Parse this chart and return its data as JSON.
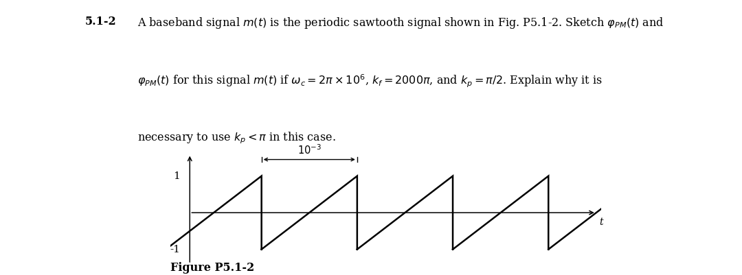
{
  "title_bold": "5.1-2",
  "line1_after_title": " A baseband signal m(t) is the periodic sawtooth signal shown in Fig. P5.1-2. Sketch φₓₘ(t) and",
  "line2": "φₓₘ(t) for this signal m(t) if ωc = 2π × 10⁶,  kf = 2000π, and kp = π/2. Explain why it is",
  "line3": "necessary to use kp < π in this case.",
  "figure_caption": "Figure P5.1-2",
  "period_ms": 1.0,
  "amplitude": 1.0,
  "background_color": "#ffffff",
  "signal_color": "#000000",
  "text_color": "#000000",
  "fig_width": 10.8,
  "fig_height": 4.01,
  "period_label": "10⁻³",
  "t_label": "t",
  "y_label_1": "1",
  "y_label_n1": "-1"
}
